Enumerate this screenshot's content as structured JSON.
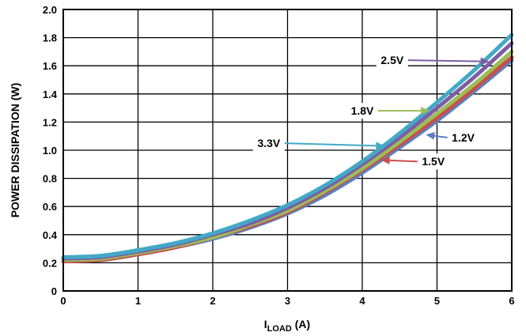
{
  "chart_data": {
    "type": "line",
    "title": "",
    "xlabel_main": "I",
    "xlabel_sub": "LOAD",
    "xlabel_suffix": " (A)",
    "ylabel": "POWER DISSIPATION (W)",
    "xlim": [
      0,
      6
    ],
    "ylim": [
      0,
      2.0
    ],
    "grid": true,
    "x_ticks": [
      "0",
      "1",
      "2",
      "3",
      "4",
      "5",
      "6"
    ],
    "y_ticks": [
      "0",
      "0.2",
      "0.4",
      "0.6",
      "0.8",
      "1.0",
      "1.2",
      "1.4",
      "1.6",
      "1.8",
      "2.0"
    ],
    "x": [
      0,
      0.5,
      1,
      1.5,
      2,
      2.5,
      3,
      3.5,
      4,
      4.5,
      5,
      5.5,
      6
    ],
    "series": [
      {
        "name": "1.2V",
        "color": "#5b7fc4",
        "values": [
          0.21,
          0.22,
          0.26,
          0.31,
          0.37,
          0.45,
          0.55,
          0.68,
          0.84,
          1.02,
          1.21,
          1.42,
          1.64
        ],
        "label_at": [
          5.35,
          1.09
        ],
        "arrow_to": [
          4.85,
          1.11
        ]
      },
      {
        "name": "1.5V",
        "color": "#c8504a",
        "values": [
          0.21,
          0.22,
          0.26,
          0.31,
          0.38,
          0.46,
          0.56,
          0.7,
          0.86,
          1.04,
          1.23,
          1.44,
          1.66
        ],
        "label_at": [
          4.95,
          0.92
        ],
        "arrow_to": [
          4.25,
          0.93
        ]
      },
      {
        "name": "1.8V",
        "color": "#9bbe56",
        "values": [
          0.22,
          0.23,
          0.27,
          0.32,
          0.38,
          0.47,
          0.57,
          0.71,
          0.87,
          1.06,
          1.26,
          1.47,
          1.7
        ],
        "label_at": [
          4.0,
          1.28
        ],
        "arrow_to": [
          4.9,
          1.28
        ]
      },
      {
        "name": "2.5V",
        "color": "#7d5ea5",
        "values": [
          0.23,
          0.24,
          0.28,
          0.33,
          0.4,
          0.48,
          0.59,
          0.73,
          0.9,
          1.09,
          1.3,
          1.52,
          1.76
        ],
        "label_at": [
          4.4,
          1.64
        ],
        "arrow_to": [
          5.7,
          1.63
        ]
      },
      {
        "name": "3.3V",
        "color": "#42a9c6",
        "values": [
          0.24,
          0.25,
          0.29,
          0.34,
          0.41,
          0.5,
          0.61,
          0.75,
          0.92,
          1.12,
          1.34,
          1.57,
          1.82
        ],
        "label_at": [
          2.75,
          1.05
        ],
        "arrow_to": [
          4.3,
          1.03
        ]
      }
    ]
  }
}
